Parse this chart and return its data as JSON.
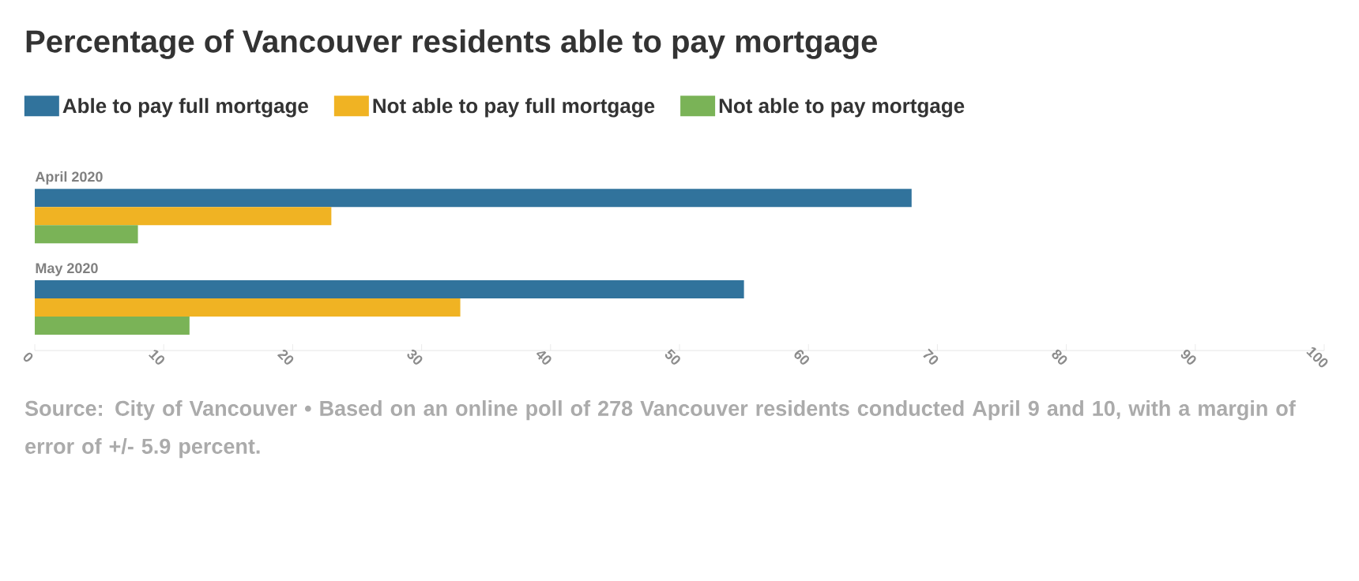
{
  "chart_data": {
    "type": "bar",
    "orientation": "horizontal",
    "title": "Percentage of Vancouver residents able to pay mortgage",
    "categories": [
      "April 2020",
      "May 2020"
    ],
    "series": [
      {
        "name": "Able to pay full mortgage",
        "color": "#31739c",
        "values": [
          68,
          55
        ]
      },
      {
        "name": "Not able to pay full mortgage",
        "color": "#f0b323",
        "values": [
          23,
          33
        ]
      },
      {
        "name": "Not able to pay mortgage",
        "color": "#7ab357",
        "values": [
          8,
          12
        ]
      }
    ],
    "xlim": [
      0,
      100
    ],
    "xticks": [
      0,
      10,
      20,
      30,
      40,
      50,
      60,
      70,
      80,
      90,
      100
    ],
    "legend": "top left",
    "annotations": [
      "Source: City of Vancouver • Based on an online poll of 278 Vancouver residents conducted April 9 and 10, with a margin of error of +/- 5.9 percent."
    ]
  }
}
